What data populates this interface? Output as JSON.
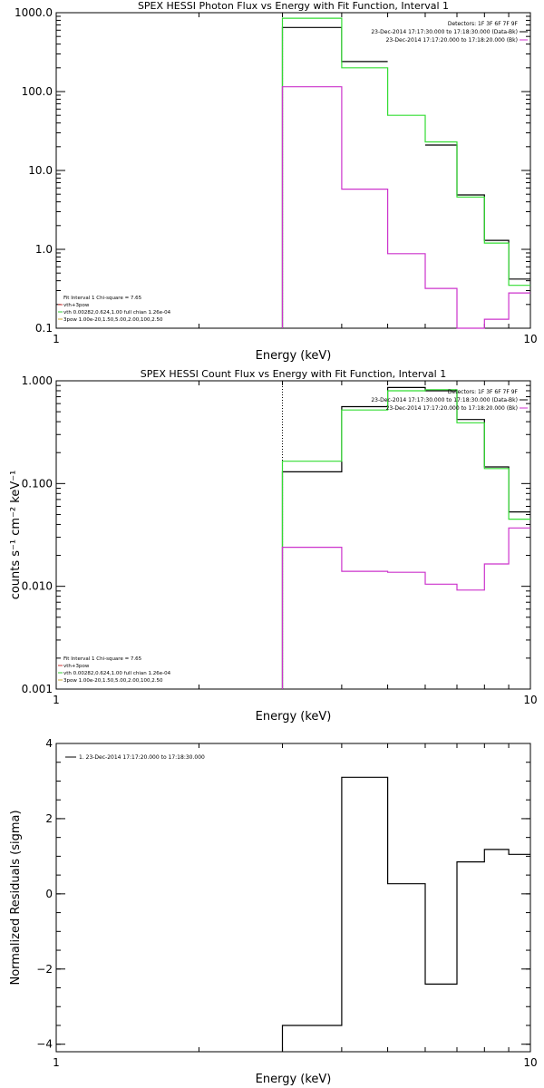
{
  "chart_data": [
    {
      "type": "line",
      "title": "SPEX HESSI Photon Flux vs Energy with Fit Function, Interval 1",
      "xlabel": "Energy (keV)",
      "ylabel": "",
      "x_scale": "log",
      "y_scale": "log",
      "xlim": [
        1,
        10
      ],
      "ylim": [
        0.1,
        1000
      ],
      "x_ticks": [
        {
          "v": 1,
          "label": "1"
        },
        {
          "v": 10,
          "label": "10"
        }
      ],
      "y_ticks": [
        {
          "v": 0.1,
          "label": "0.1"
        },
        {
          "v": 1,
          "label": "1.0"
        },
        {
          "v": 10,
          "label": "10.0"
        },
        {
          "v": 100,
          "label": "100.0"
        },
        {
          "v": 1000,
          "label": "1000.0"
        }
      ],
      "vline_x": 3.0,
      "legend_top": [
        "Detectors: 1F 3F 6F 7F 9F",
        "23-Dec-2014 17:17:30.000 to 17:18:30.000 (Data-Bk)",
        "23-Dec-2014 17:17:20.000 to 17:18:20.000 (Bk)"
      ],
      "legend_top_colors": [
        "#000000",
        "#000000",
        "#cc33cc"
      ],
      "legend_bottom": [
        "Fit Interval 1   Chi-square = 7.65",
        "vth+3pow",
        "vth 0.00282,0.624,1.00  full chian 1.26e-04",
        "3pow 1.00e-20,1.50,5.00,2.00,100,2.50"
      ],
      "legend_bottom_colors": [
        "",
        "#cc3333",
        "#33cc33",
        "#ccaa33"
      ],
      "edges": [
        3.0,
        4.0,
        5.0,
        6.0,
        7.0,
        8.0,
        9.0,
        10.0
      ],
      "series": [
        {
          "color": "#000000",
          "values": [
            650,
            240,
            null,
            21,
            4.9,
            1.3,
            0.42
          ]
        },
        {
          "color": "#33dd33",
          "values": [
            850,
            200,
            50,
            23,
            4.6,
            1.2,
            0.35
          ]
        },
        {
          "color": "#cc33cc",
          "values": [
            115,
            5.8,
            0.88,
            0.32,
            0.1,
            0.13,
            0.28
          ]
        }
      ]
    },
    {
      "type": "line",
      "title": "SPEX HESSI Count Flux vs Energy with Fit Function, Interval 1",
      "xlabel": "Energy (keV)",
      "ylabel": "counts s⁻¹ cm⁻² keV⁻¹",
      "x_scale": "log",
      "y_scale": "log",
      "xlim": [
        1,
        10
      ],
      "ylim": [
        0.001,
        1.0
      ],
      "x_ticks": [
        {
          "v": 1,
          "label": "1"
        },
        {
          "v": 10,
          "label": "10"
        }
      ],
      "y_ticks": [
        {
          "v": 0.001,
          "label": "0.001"
        },
        {
          "v": 0.01,
          "label": "0.010"
        },
        {
          "v": 0.1,
          "label": "0.100"
        },
        {
          "v": 1,
          "label": "1.000"
        }
      ],
      "vline_x": 3.0,
      "legend_top": [
        "Detectors: 1F 3F 6F 7F 9F",
        "23-Dec-2014 17:17:30.000 to 17:18:30.000 (Data-Bk)",
        "23-Dec-2014 17:17:20.000 to 17:18:20.000 (Bk)"
      ],
      "legend_top_colors": [
        "#000000",
        "#000000",
        "#cc33cc"
      ],
      "legend_bottom": [
        "Fit Interval 1   Chi-square = 7.65",
        "vth+3pow",
        "vth 0.00282,0.624,1.00  full chian 1.26e-04",
        "3pow 1.00e-20,1.50,5.00,2.00,100,2.50"
      ],
      "legend_bottom_colors": [
        "",
        "#cc3333",
        "#33cc33",
        "#ccaa33"
      ],
      "edges": [
        3.0,
        4.0,
        5.0,
        6.0,
        7.0,
        8.0,
        9.0,
        10.0
      ],
      "series": [
        {
          "color": "#000000",
          "values": [
            0.13,
            0.56,
            0.86,
            0.8,
            0.42,
            0.145,
            0.053
          ]
        },
        {
          "color": "#33dd33",
          "values": [
            0.165,
            0.52,
            0.8,
            0.82,
            0.39,
            0.14,
            0.045
          ]
        },
        {
          "color": "#cc33cc",
          "values": [
            0.024,
            0.014,
            0.0137,
            0.0105,
            0.0092,
            0.0165,
            0.037
          ]
        }
      ]
    },
    {
      "type": "line",
      "title": "",
      "xlabel": "Energy (keV)",
      "ylabel": "Normalized Residuals (sigma)",
      "x_scale": "log",
      "y_scale": "linear",
      "xlim": [
        1,
        10
      ],
      "ylim": [
        -4.2,
        4.0
      ],
      "x_ticks": [
        {
          "v": 1,
          "label": "1"
        },
        {
          "v": 10,
          "label": "10"
        }
      ],
      "y_ticks": [
        {
          "v": -4,
          "label": "−4"
        },
        {
          "v": -2,
          "label": "−2"
        },
        {
          "v": 0,
          "label": "0"
        },
        {
          "v": 2,
          "label": "2"
        },
        {
          "v": 4,
          "label": "4"
        }
      ],
      "legend": "1. 23-Dec-2014 17:17:20.000 to 17:18:30.000",
      "edges": [
        3.0,
        4.0,
        5.0,
        6.0,
        7.0,
        8.0,
        9.0,
        10.0
      ],
      "series": [
        {
          "color": "#000000",
          "values": [
            -3.5,
            3.1,
            0.27,
            -2.4,
            0.85,
            1.18,
            1.05
          ]
        }
      ]
    }
  ]
}
